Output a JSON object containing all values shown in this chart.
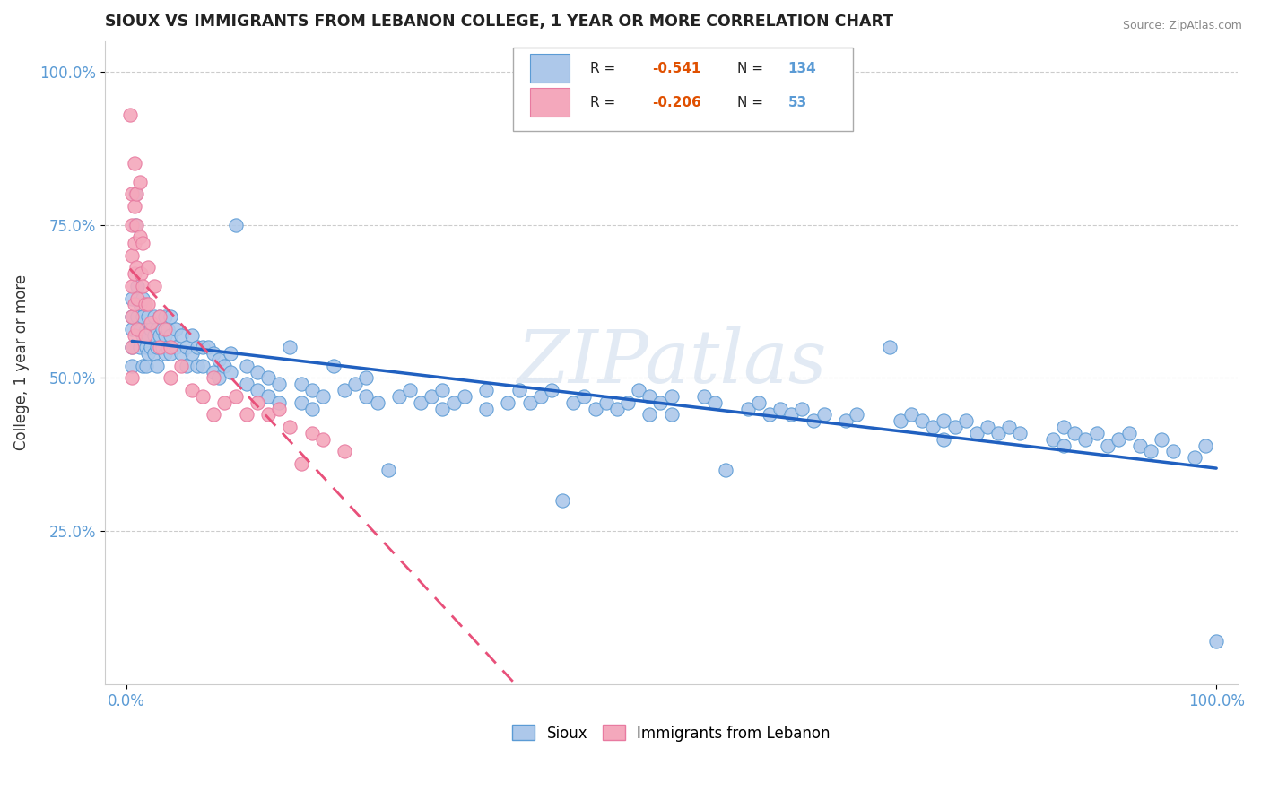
{
  "title": "SIOUX VS IMMIGRANTS FROM LEBANON COLLEGE, 1 YEAR OR MORE CORRELATION CHART",
  "source_text": "Source: ZipAtlas.com",
  "ylabel": "College, 1 year or more",
  "xlim": [
    -0.02,
    1.02
  ],
  "ylim": [
    0.0,
    1.05
  ],
  "ytick_positions": [
    0.25,
    0.5,
    0.75,
    1.0
  ],
  "ytick_labels": [
    "25.0%",
    "50.0%",
    "75.0%",
    "100.0%"
  ],
  "xtick_positions": [
    0.0,
    1.0
  ],
  "xtick_labels": [
    "0.0%",
    "100.0%"
  ],
  "sioux_color": "#adc8ea",
  "sioux_edge_color": "#5b9bd5",
  "lebanon_color": "#f4a8bc",
  "lebanon_edge_color": "#e87aa0",
  "sioux_line_color": "#2060c0",
  "lebanon_line_color": "#e8507a",
  "lebanon_line_style": "--",
  "watermark": "ZIPatlas",
  "background_color": "#ffffff",
  "grid_color": "#cccccc",
  "text_color": "#5b9bd5",
  "R_color": "#e05000",
  "legend_box_color": "#e8f0fb",
  "sioux_scatter": [
    [
      0.005,
      0.58
    ],
    [
      0.005,
      0.6
    ],
    [
      0.005,
      0.63
    ],
    [
      0.005,
      0.55
    ],
    [
      0.005,
      0.52
    ],
    [
      0.008,
      0.8
    ],
    [
      0.008,
      0.75
    ],
    [
      0.01,
      0.65
    ],
    [
      0.01,
      0.6
    ],
    [
      0.012,
      0.62
    ],
    [
      0.012,
      0.55
    ],
    [
      0.013,
      0.58
    ],
    [
      0.015,
      0.6
    ],
    [
      0.015,
      0.57
    ],
    [
      0.015,
      0.63
    ],
    [
      0.015,
      0.52
    ],
    [
      0.018,
      0.58
    ],
    [
      0.018,
      0.55
    ],
    [
      0.018,
      0.52
    ],
    [
      0.02,
      0.6
    ],
    [
      0.02,
      0.57
    ],
    [
      0.02,
      0.54
    ],
    [
      0.022,
      0.58
    ],
    [
      0.022,
      0.55
    ],
    [
      0.025,
      0.6
    ],
    [
      0.025,
      0.57
    ],
    [
      0.025,
      0.54
    ],
    [
      0.028,
      0.58
    ],
    [
      0.028,
      0.55
    ],
    [
      0.028,
      0.52
    ],
    [
      0.03,
      0.6
    ],
    [
      0.03,
      0.57
    ],
    [
      0.033,
      0.58
    ],
    [
      0.033,
      0.55
    ],
    [
      0.035,
      0.6
    ],
    [
      0.035,
      0.57
    ],
    [
      0.035,
      0.54
    ],
    [
      0.038,
      0.58
    ],
    [
      0.038,
      0.55
    ],
    [
      0.04,
      0.6
    ],
    [
      0.04,
      0.57
    ],
    [
      0.04,
      0.54
    ],
    [
      0.045,
      0.58
    ],
    [
      0.045,
      0.55
    ],
    [
      0.05,
      0.57
    ],
    [
      0.05,
      0.54
    ],
    [
      0.055,
      0.55
    ],
    [
      0.055,
      0.52
    ],
    [
      0.06,
      0.57
    ],
    [
      0.06,
      0.54
    ],
    [
      0.065,
      0.55
    ],
    [
      0.065,
      0.52
    ],
    [
      0.07,
      0.55
    ],
    [
      0.07,
      0.52
    ],
    [
      0.075,
      0.55
    ],
    [
      0.08,
      0.54
    ],
    [
      0.08,
      0.51
    ],
    [
      0.085,
      0.53
    ],
    [
      0.085,
      0.5
    ],
    [
      0.09,
      0.52
    ],
    [
      0.095,
      0.54
    ],
    [
      0.095,
      0.51
    ],
    [
      0.1,
      0.75
    ],
    [
      0.11,
      0.52
    ],
    [
      0.11,
      0.49
    ],
    [
      0.12,
      0.51
    ],
    [
      0.12,
      0.48
    ],
    [
      0.13,
      0.5
    ],
    [
      0.13,
      0.47
    ],
    [
      0.14,
      0.49
    ],
    [
      0.14,
      0.46
    ],
    [
      0.15,
      0.55
    ],
    [
      0.16,
      0.49
    ],
    [
      0.16,
      0.46
    ],
    [
      0.17,
      0.48
    ],
    [
      0.17,
      0.45
    ],
    [
      0.18,
      0.47
    ],
    [
      0.19,
      0.52
    ],
    [
      0.2,
      0.48
    ],
    [
      0.21,
      0.49
    ],
    [
      0.22,
      0.5
    ],
    [
      0.22,
      0.47
    ],
    [
      0.23,
      0.46
    ],
    [
      0.24,
      0.35
    ],
    [
      0.25,
      0.47
    ],
    [
      0.26,
      0.48
    ],
    [
      0.27,
      0.46
    ],
    [
      0.28,
      0.47
    ],
    [
      0.29,
      0.48
    ],
    [
      0.29,
      0.45
    ],
    [
      0.3,
      0.46
    ],
    [
      0.31,
      0.47
    ],
    [
      0.33,
      0.48
    ],
    [
      0.33,
      0.45
    ],
    [
      0.35,
      0.46
    ],
    [
      0.36,
      0.48
    ],
    [
      0.37,
      0.46
    ],
    [
      0.38,
      0.47
    ],
    [
      0.39,
      0.48
    ],
    [
      0.4,
      0.3
    ],
    [
      0.41,
      0.46
    ],
    [
      0.42,
      0.47
    ],
    [
      0.43,
      0.45
    ],
    [
      0.44,
      0.46
    ],
    [
      0.45,
      0.45
    ],
    [
      0.46,
      0.46
    ],
    [
      0.47,
      0.48
    ],
    [
      0.48,
      0.47
    ],
    [
      0.48,
      0.44
    ],
    [
      0.49,
      0.46
    ],
    [
      0.5,
      0.47
    ],
    [
      0.5,
      0.44
    ],
    [
      0.53,
      0.47
    ],
    [
      0.54,
      0.46
    ],
    [
      0.55,
      0.35
    ],
    [
      0.57,
      0.45
    ],
    [
      0.58,
      0.46
    ],
    [
      0.59,
      0.44
    ],
    [
      0.6,
      0.45
    ],
    [
      0.61,
      0.44
    ],
    [
      0.62,
      0.45
    ],
    [
      0.63,
      0.43
    ],
    [
      0.64,
      0.44
    ],
    [
      0.66,
      0.43
    ],
    [
      0.67,
      0.44
    ],
    [
      0.7,
      0.55
    ],
    [
      0.71,
      0.43
    ],
    [
      0.72,
      0.44
    ],
    [
      0.73,
      0.43
    ],
    [
      0.74,
      0.42
    ],
    [
      0.75,
      0.43
    ],
    [
      0.75,
      0.4
    ],
    [
      0.76,
      0.42
    ],
    [
      0.77,
      0.43
    ],
    [
      0.78,
      0.41
    ],
    [
      0.79,
      0.42
    ],
    [
      0.8,
      0.41
    ],
    [
      0.81,
      0.42
    ],
    [
      0.82,
      0.41
    ],
    [
      0.85,
      0.4
    ],
    [
      0.86,
      0.42
    ],
    [
      0.86,
      0.39
    ],
    [
      0.87,
      0.41
    ],
    [
      0.88,
      0.4
    ],
    [
      0.89,
      0.41
    ],
    [
      0.9,
      0.39
    ],
    [
      0.91,
      0.4
    ],
    [
      0.92,
      0.41
    ],
    [
      0.93,
      0.39
    ],
    [
      0.94,
      0.38
    ],
    [
      0.95,
      0.4
    ],
    [
      0.96,
      0.38
    ],
    [
      0.98,
      0.37
    ],
    [
      0.99,
      0.39
    ],
    [
      1.0,
      0.07
    ]
  ],
  "lebanon_scatter": [
    [
      0.003,
      0.93
    ],
    [
      0.005,
      0.8
    ],
    [
      0.005,
      0.75
    ],
    [
      0.005,
      0.7
    ],
    [
      0.005,
      0.65
    ],
    [
      0.005,
      0.6
    ],
    [
      0.005,
      0.55
    ],
    [
      0.005,
      0.5
    ],
    [
      0.007,
      0.85
    ],
    [
      0.007,
      0.78
    ],
    [
      0.007,
      0.72
    ],
    [
      0.007,
      0.67
    ],
    [
      0.007,
      0.62
    ],
    [
      0.007,
      0.57
    ],
    [
      0.009,
      0.8
    ],
    [
      0.009,
      0.75
    ],
    [
      0.009,
      0.68
    ],
    [
      0.01,
      0.63
    ],
    [
      0.01,
      0.58
    ],
    [
      0.012,
      0.82
    ],
    [
      0.012,
      0.73
    ],
    [
      0.013,
      0.67
    ],
    [
      0.015,
      0.72
    ],
    [
      0.015,
      0.65
    ],
    [
      0.017,
      0.62
    ],
    [
      0.017,
      0.57
    ],
    [
      0.02,
      0.68
    ],
    [
      0.02,
      0.62
    ],
    [
      0.022,
      0.59
    ],
    [
      0.025,
      0.65
    ],
    [
      0.03,
      0.6
    ],
    [
      0.03,
      0.55
    ],
    [
      0.035,
      0.58
    ],
    [
      0.04,
      0.55
    ],
    [
      0.04,
      0.5
    ],
    [
      0.05,
      0.52
    ],
    [
      0.06,
      0.48
    ],
    [
      0.07,
      0.47
    ],
    [
      0.08,
      0.5
    ],
    [
      0.08,
      0.44
    ],
    [
      0.09,
      0.46
    ],
    [
      0.1,
      0.47
    ],
    [
      0.11,
      0.44
    ],
    [
      0.12,
      0.46
    ],
    [
      0.13,
      0.44
    ],
    [
      0.14,
      0.45
    ],
    [
      0.15,
      0.42
    ],
    [
      0.16,
      0.36
    ],
    [
      0.17,
      0.41
    ],
    [
      0.18,
      0.4
    ],
    [
      0.2,
      0.38
    ]
  ]
}
